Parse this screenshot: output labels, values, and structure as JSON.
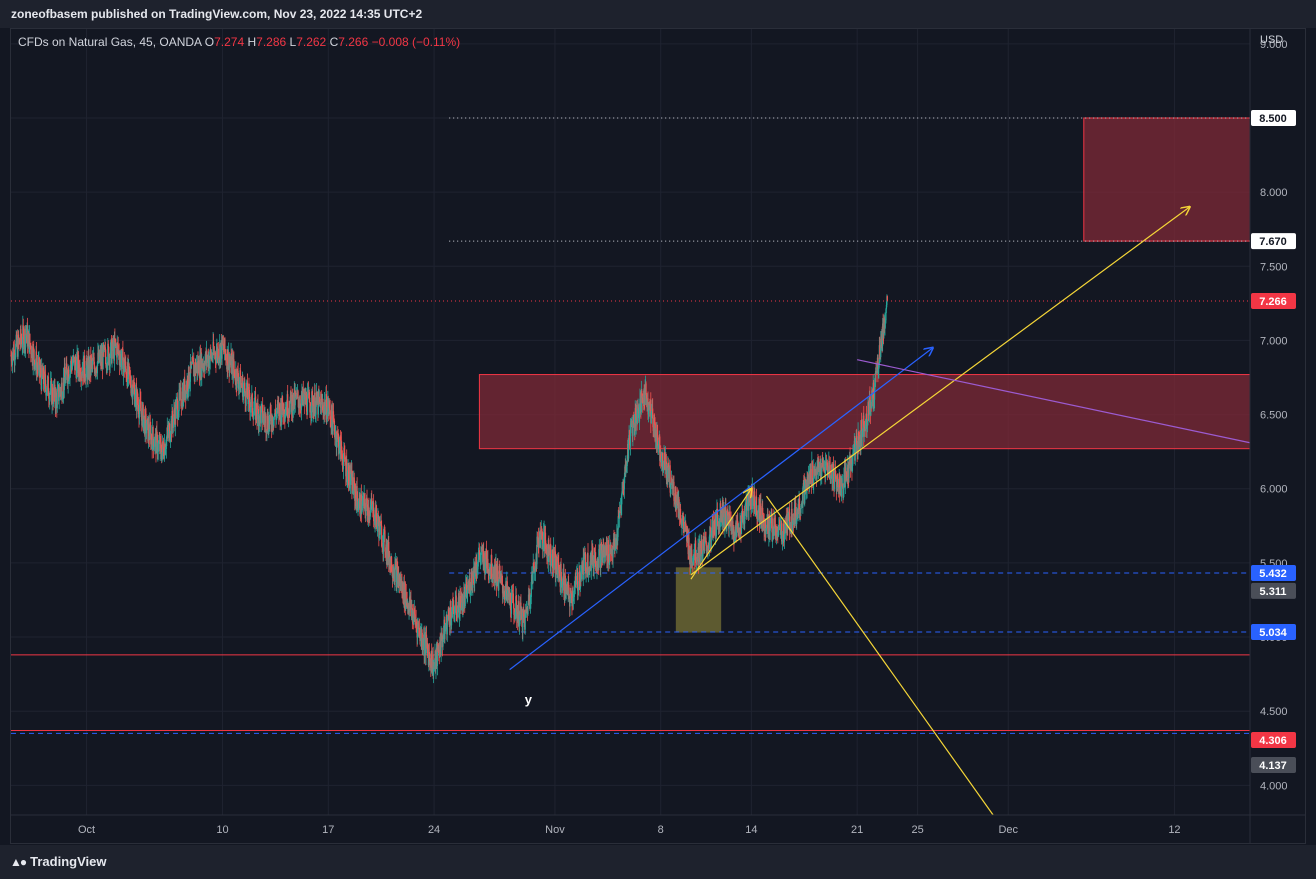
{
  "header": {
    "publisher_text": "zoneofbasem published on TradingView.com, Nov 23, 2022 14:35 UTC+2"
  },
  "legend": {
    "symbol": "CFDs on Natural Gas, 45, OANDA",
    "o_label": "O",
    "o_value": "7.274",
    "h_label": "H",
    "h_value": "7.286",
    "l_label": "L",
    "l_value": "7.262",
    "c_label": "C",
    "c_value": "7.266",
    "change": "−0.008 (−0.11%)"
  },
  "footer": {
    "brand": "TradingView"
  },
  "colors": {
    "up": "#26a69a",
    "down": "#ef5350",
    "zone": "#7f2a37",
    "zone_border": "#f23645",
    "blue_line": "#2962ff",
    "yellow_line": "#f5d638",
    "purple_line": "#9c5bd1",
    "olive_box": "#6b6633",
    "hline_red": "#f23645",
    "hline_blue": "#2962ff"
  },
  "chart_data": {
    "type": "candlestick",
    "symbol": "CFDs on Natural Gas",
    "interval": "45",
    "exchange": "OANDA",
    "currency": "USD",
    "ylim": [
      3.8,
      9.1
    ],
    "y_ticks": [
      "4.000",
      "4.500",
      "5.000",
      "5.500",
      "6.000",
      "6.500",
      "7.000",
      "7.500",
      "8.000",
      "8.500",
      "9.000"
    ],
    "x_ticks": [
      "Oct",
      "10",
      "17",
      "24",
      "Nov",
      "8",
      "14",
      "21",
      "25",
      "Dec",
      "12"
    ],
    "x_range": [
      "2022-09-26",
      "2022-12-17"
    ],
    "last_price": 7.266,
    "price_labels": [
      {
        "value": "8.500",
        "kind": "level"
      },
      {
        "value": "7.670",
        "kind": "level"
      },
      {
        "value": "7.266",
        "kind": "last"
      },
      {
        "value": "5.432",
        "kind": "blue"
      },
      {
        "value": "5.311",
        "kind": "gray"
      },
      {
        "value": "5.034",
        "kind": "blue"
      },
      {
        "value": "4.306",
        "kind": "red"
      },
      {
        "value": "4.137",
        "kind": "gray"
      }
    ],
    "path_points": [
      [
        "2022-09-26",
        6.9
      ],
      [
        "2022-09-27",
        7.05
      ],
      [
        "2022-09-28",
        6.75
      ],
      [
        "2022-09-29",
        6.6
      ],
      [
        "2022-09-30",
        6.85
      ],
      [
        "2022-10-01",
        6.8
      ],
      [
        "2022-10-03",
        6.95
      ],
      [
        "2022-10-04",
        6.7
      ],
      [
        "2022-10-05",
        6.4
      ],
      [
        "2022-10-06",
        6.25
      ],
      [
        "2022-10-07",
        6.55
      ],
      [
        "2022-10-08",
        6.8
      ],
      [
        "2022-10-10",
        6.95
      ],
      [
        "2022-10-11",
        6.75
      ],
      [
        "2022-10-12",
        6.55
      ],
      [
        "2022-10-13",
        6.45
      ],
      [
        "2022-10-14",
        6.55
      ],
      [
        "2022-10-15",
        6.6
      ],
      [
        "2022-10-17",
        6.55
      ],
      [
        "2022-10-18",
        6.2
      ],
      [
        "2022-10-19",
        5.9
      ],
      [
        "2022-10-20",
        5.85
      ],
      [
        "2022-10-21",
        5.55
      ],
      [
        "2022-10-22",
        5.3
      ],
      [
        "2022-10-23",
        5.05
      ],
      [
        "2022-10-24",
        4.8
      ],
      [
        "2022-10-25",
        5.15
      ],
      [
        "2022-10-26",
        5.25
      ],
      [
        "2022-10-27",
        5.55
      ],
      [
        "2022-10-28",
        5.45
      ],
      [
        "2022-10-29",
        5.25
      ],
      [
        "2022-10-30",
        5.1
      ],
      [
        "2022-10-31",
        5.7
      ],
      [
        "2022-11-01",
        5.5
      ],
      [
        "2022-11-02",
        5.25
      ],
      [
        "2022-11-03",
        5.5
      ],
      [
        "2022-11-04",
        5.55
      ],
      [
        "2022-11-05",
        5.6
      ],
      [
        "2022-11-06",
        6.4
      ],
      [
        "2022-11-07",
        6.65
      ],
      [
        "2022-11-08",
        6.25
      ],
      [
        "2022-11-09",
        5.95
      ],
      [
        "2022-11-10",
        5.55
      ],
      [
        "2022-11-11",
        5.6
      ],
      [
        "2022-11-12",
        5.85
      ],
      [
        "2022-11-13",
        5.7
      ],
      [
        "2022-11-14",
        5.95
      ],
      [
        "2022-11-15",
        5.75
      ],
      [
        "2022-11-16",
        5.7
      ],
      [
        "2022-11-17",
        5.85
      ],
      [
        "2022-11-18",
        6.1
      ],
      [
        "2022-11-19",
        6.15
      ],
      [
        "2022-11-20",
        6.0
      ],
      [
        "2022-11-21",
        6.3
      ],
      [
        "2022-11-22",
        6.6
      ],
      [
        "2022-11-23",
        7.26
      ]
    ],
    "horizontal_lines": [
      {
        "value": 8.5,
        "style": "dotted",
        "color": "#d1d4dc",
        "from": "2022-10-25"
      },
      {
        "value": 7.67,
        "style": "dotted",
        "color": "#d1d4dc",
        "from": "2022-10-25"
      },
      {
        "value": 7.266,
        "style": "dotted",
        "color": "#f23645",
        "from": "2022-09-26"
      },
      {
        "value": 5.432,
        "style": "dashed",
        "color": "#2962ff",
        "from": "2022-10-25"
      },
      {
        "value": 5.034,
        "style": "dashed",
        "color": "#2962ff",
        "from": "2022-10-25"
      },
      {
        "value": 4.88,
        "style": "solid",
        "color": "#f23645",
        "from": "2022-09-26"
      },
      {
        "value": 4.35,
        "style": "dashed",
        "color": "#2962ff",
        "from": "2022-09-26"
      },
      {
        "value": 4.37,
        "style": "solid",
        "color": "#f23645",
        "from": "2022-09-26"
      }
    ],
    "zones": [
      {
        "from": "2022-10-27",
        "to": "2022-12-17",
        "low": 6.27,
        "high": 6.77
      },
      {
        "from": "2022-12-06",
        "to": "2022-12-17",
        "low": 7.67,
        "high": 8.5
      }
    ],
    "boxes": [
      {
        "from": "2022-11-09",
        "to": "2022-11-12",
        "low": 5.03,
        "high": 5.47
      }
    ],
    "trendlines": [
      {
        "from": [
          "2022-10-29",
          4.78
        ],
        "to": [
          "2022-11-26",
          6.95
        ],
        "color": "#2962ff",
        "arrow": true
      },
      {
        "from": [
          "2022-11-10",
          5.42
        ],
        "to": [
          "2022-12-13",
          7.9
        ],
        "color": "#f5d638",
        "arrow": true
      },
      {
        "from": [
          "2022-11-10",
          5.39
        ],
        "to": [
          "2022-11-14",
          6.0
        ],
        "color": "#f5d638",
        "arrow": true
      },
      {
        "from": [
          "2022-11-15",
          5.95
        ],
        "to": [
          "2022-11-30",
          3.8
        ],
        "color": "#f5d638",
        "arrow": false
      },
      {
        "from": [
          "2022-11-21",
          6.87
        ],
        "to": [
          "2022-12-17",
          6.31
        ],
        "color": "#9c5bd1",
        "arrow": false
      }
    ],
    "annotations": [
      {
        "text": "y",
        "at": [
          "2022-10-30",
          4.55
        ]
      }
    ]
  }
}
